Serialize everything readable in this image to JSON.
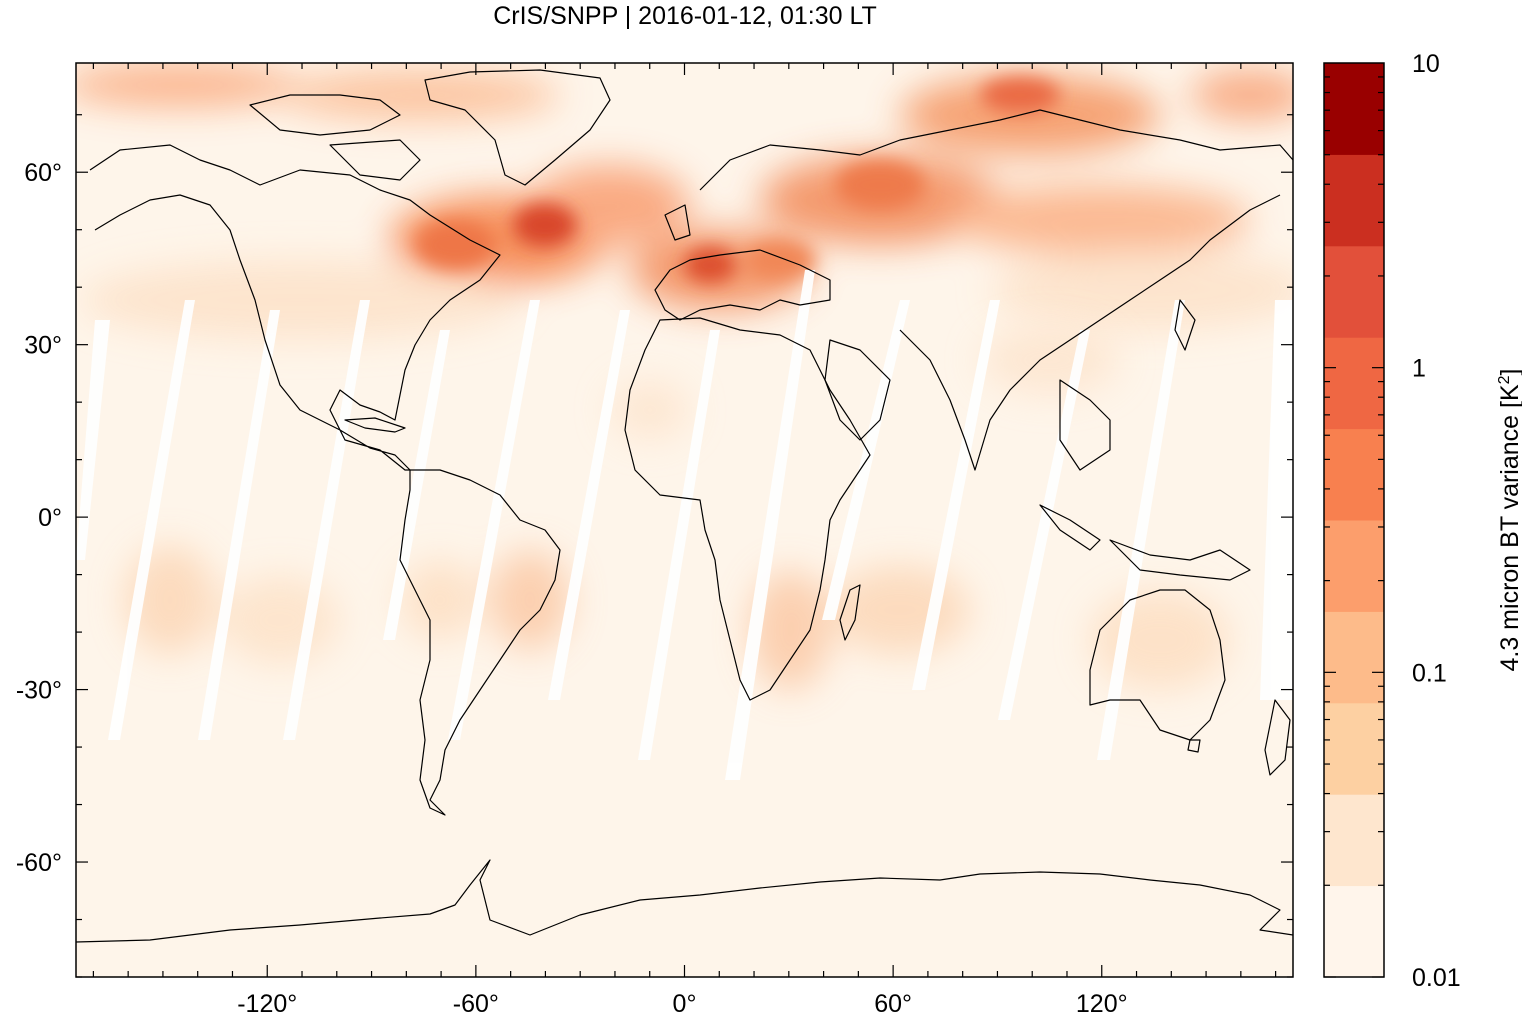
{
  "title": "CrIS/SNPP | 2016-01-12, 01:30 LT",
  "map": {
    "projection": "equirectangular",
    "lon_range": [
      -175,
      175
    ],
    "lat_range": [
      -80,
      79
    ],
    "x_ticks": [
      {
        "value": -120,
        "label": "-120°"
      },
      {
        "value": -60,
        "label": "-60°"
      },
      {
        "value": 0,
        "label": "0°"
      },
      {
        "value": 60,
        "label": "60°"
      },
      {
        "value": 120,
        "label": "120°"
      }
    ],
    "y_ticks": [
      {
        "value": 60,
        "label": "60°"
      },
      {
        "value": 30,
        "label": "30°"
      },
      {
        "value": 0,
        "label": "0°"
      },
      {
        "value": -30,
        "label": "-30°"
      },
      {
        "value": -60,
        "label": "-60°"
      }
    ],
    "background_color": "#fef5ea",
    "coastline_color": "#000000"
  },
  "colorbar": {
    "label": "4.3 micron BT variance [K",
    "label_superscript": "2",
    "label_close": "]",
    "scale": "log",
    "range": [
      0.01,
      10
    ],
    "tick_labels": [
      {
        "value": 10,
        "label": "10"
      },
      {
        "value": 1,
        "label": "1"
      },
      {
        "value": 0.1,
        "label": "0.1"
      },
      {
        "value": 0.01,
        "label": "0.01"
      }
    ],
    "colors": [
      "#fff5eb",
      "#fee6ce",
      "#fdd0a2",
      "#fdbb8a",
      "#fc9e6c",
      "#f8804f",
      "#ef6743",
      "#e2503a",
      "#cb2f20",
      "#990000"
    ]
  }
}
